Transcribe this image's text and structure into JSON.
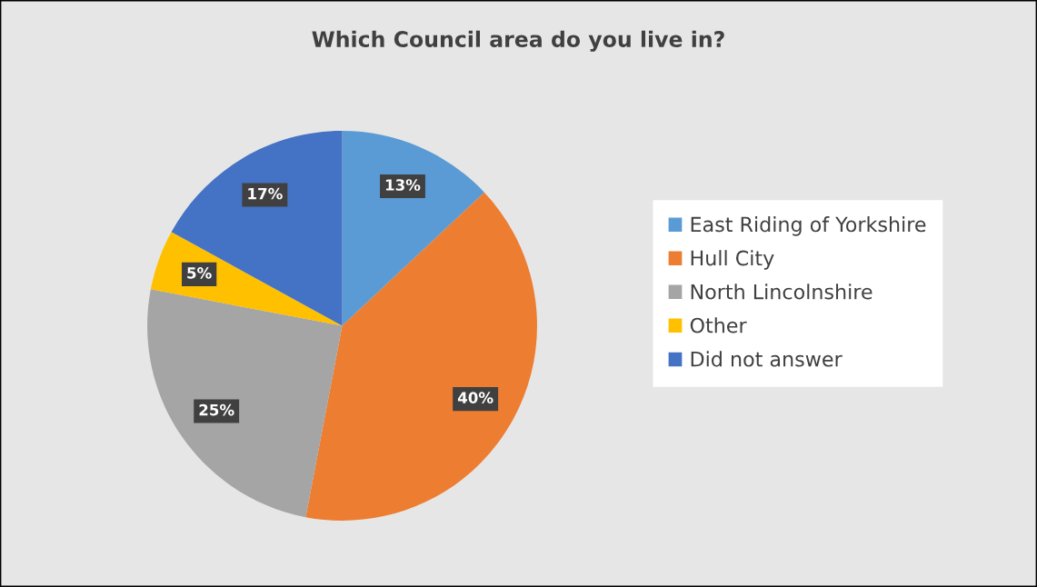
{
  "chart_data": {
    "type": "pie",
    "title": "Which Council area do you live in?",
    "categories": [
      "East Riding of Yorkshire",
      "Hull City",
      "North Lincolnshire",
      "Other",
      "Did not answer"
    ],
    "values": [
      13,
      40,
      25,
      5,
      17
    ],
    "colors": [
      "#5b9bd5",
      "#ed7d31",
      "#a5a5a5",
      "#ffc000",
      "#4472c4"
    ],
    "value_labels": [
      "13%",
      "40%",
      "25%",
      "5%",
      "17%"
    ],
    "legend": "right"
  }
}
